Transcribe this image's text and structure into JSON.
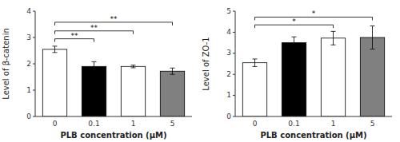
{
  "chart_data": [
    {
      "type": "bar",
      "xlabel": "PLB concentration (μM)",
      "ylabel": "Level of β-catenin",
      "categories": [
        "0",
        "0.1",
        "1",
        "5"
      ],
      "values": [
        2.55,
        1.9,
        1.9,
        1.72
      ],
      "errors": [
        0.12,
        0.18,
        0.05,
        0.12
      ],
      "colors": [
        "white",
        "black",
        "white",
        "gray"
      ],
      "ylim": [
        0,
        4
      ],
      "yticks": [
        0,
        1,
        2,
        3,
        4
      ],
      "grid": false,
      "annotations": [
        {
          "text": "**",
          "from": "0",
          "to": "0.1",
          "y": 2.95
        },
        {
          "text": "**",
          "from": "0",
          "to": "1",
          "y": 3.25
        },
        {
          "text": "**",
          "from": "0",
          "to": "5",
          "y": 3.58
        }
      ]
    },
    {
      "type": "bar",
      "xlabel": "PLB concentration (μM)",
      "ylabel": "Level of ZO-1",
      "categories": [
        "0",
        "0.1",
        "1",
        "5"
      ],
      "values": [
        2.55,
        3.5,
        3.72,
        3.75
      ],
      "errors": [
        0.18,
        0.28,
        0.32,
        0.55
      ],
      "colors": [
        "white",
        "black",
        "white",
        "gray"
      ],
      "ylim": [
        0,
        5
      ],
      "yticks": [
        0,
        1,
        2,
        3,
        4,
        5
      ],
      "grid": false,
      "annotations": [
        {
          "text": "*",
          "from": "0",
          "to": "1",
          "y": 4.35
        },
        {
          "text": "*",
          "from": "0",
          "to": "5",
          "y": 4.72
        }
      ]
    }
  ]
}
